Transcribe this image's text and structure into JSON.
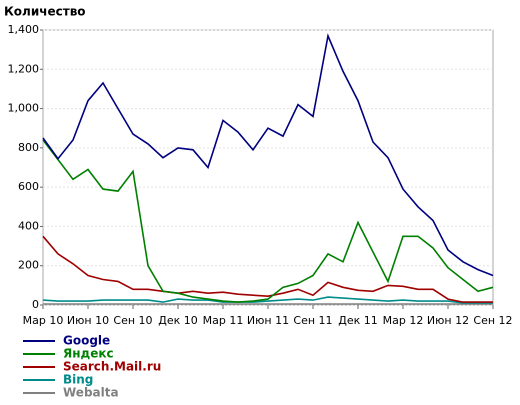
{
  "chart_data": {
    "type": "line",
    "title": "Количество",
    "categories": [
      "Мар 10",
      null,
      null,
      "Июн 10",
      null,
      null,
      "Сен 10",
      null,
      null,
      "Дек 10",
      null,
      null,
      "Мар 11",
      null,
      null,
      "Июн 11",
      null,
      null,
      "Сен 11",
      null,
      null,
      "Дек 11",
      null,
      null,
      "Мар 12",
      null,
      null,
      "Июн 12",
      null,
      null,
      "Сен 12"
    ],
    "series": [
      {
        "name": "Google",
        "color": "#000080",
        "values": [
          850,
          745,
          840,
          1040,
          1130,
          1000,
          870,
          820,
          750,
          800,
          790,
          700,
          940,
          880,
          790,
          900,
          860,
          1020,
          960,
          1370,
          1190,
          1040,
          830,
          750,
          590,
          500,
          430,
          280,
          220,
          180,
          150
        ]
      },
      {
        "name": "Яндекс",
        "color": "#008000",
        "values": [
          840,
          740,
          640,
          690,
          590,
          580,
          680,
          200,
          70,
          60,
          40,
          30,
          20,
          15,
          20,
          30,
          90,
          110,
          150,
          260,
          220,
          420,
          270,
          120,
          350,
          350,
          290,
          190,
          130,
          70,
          90
        ]
      },
      {
        "name": "Search.Mail.ru",
        "color": "#a00000",
        "values": [
          350,
          260,
          210,
          150,
          130,
          120,
          80,
          80,
          70,
          60,
          70,
          60,
          65,
          55,
          50,
          45,
          60,
          80,
          50,
          115,
          90,
          75,
          70,
          100,
          95,
          80,
          80,
          30,
          15,
          15,
          15
        ]
      },
      {
        "name": "Bing",
        "color": "#008b8b",
        "values": [
          25,
          20,
          20,
          20,
          25,
          25,
          25,
          25,
          15,
          30,
          25,
          25,
          15,
          15,
          15,
          20,
          25,
          30,
          25,
          40,
          35,
          30,
          25,
          20,
          25,
          20,
          20,
          20,
          10,
          10,
          10
        ]
      },
      {
        "name": "Webalta",
        "color": "#808080",
        "values": [
          5,
          5,
          5,
          5,
          5,
          5,
          5,
          5,
          5,
          5,
          5,
          5,
          5,
          5,
          5,
          5,
          5,
          5,
          5,
          5,
          5,
          5,
          5,
          5,
          5,
          5,
          5,
          5,
          5,
          5,
          5
        ]
      }
    ],
    "ylim": [
      0,
      1400
    ],
    "yticks": [
      0,
      200,
      400,
      600,
      800,
      {
        "value": 1000,
        "label": "1,000"
      },
      {
        "value": 1200,
        "label": "1,200"
      },
      {
        "value": 1400,
        "label": "1,400"
      }
    ],
    "grid": true
  }
}
